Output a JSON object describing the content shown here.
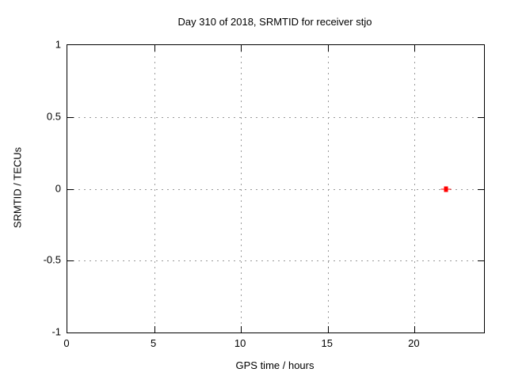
{
  "chart_data": {
    "type": "scatter",
    "title": "Day 310 of 2018, SRMTID for receiver stjo",
    "xlabel": "GPS time / hours",
    "ylabel": "SRMTID / TECUs",
    "xlim": [
      0,
      24
    ],
    "ylim": [
      -1,
      1
    ],
    "x_ticks": [
      0,
      5,
      10,
      15,
      20
    ],
    "y_ticks": [
      -1,
      -0.5,
      0,
      0.5,
      1
    ],
    "grid": true,
    "legend": "none",
    "series": [
      {
        "name": "SRMTID",
        "marker": "red filled square with horizontal error bar",
        "points": [
          {
            "x": 21.8,
            "y": 0.0
          }
        ]
      }
    ],
    "colors": {
      "marker": "#ff0000",
      "grid": "#999999",
      "axis": "#000000",
      "background": "#ffffff",
      "text": "#000000"
    }
  }
}
